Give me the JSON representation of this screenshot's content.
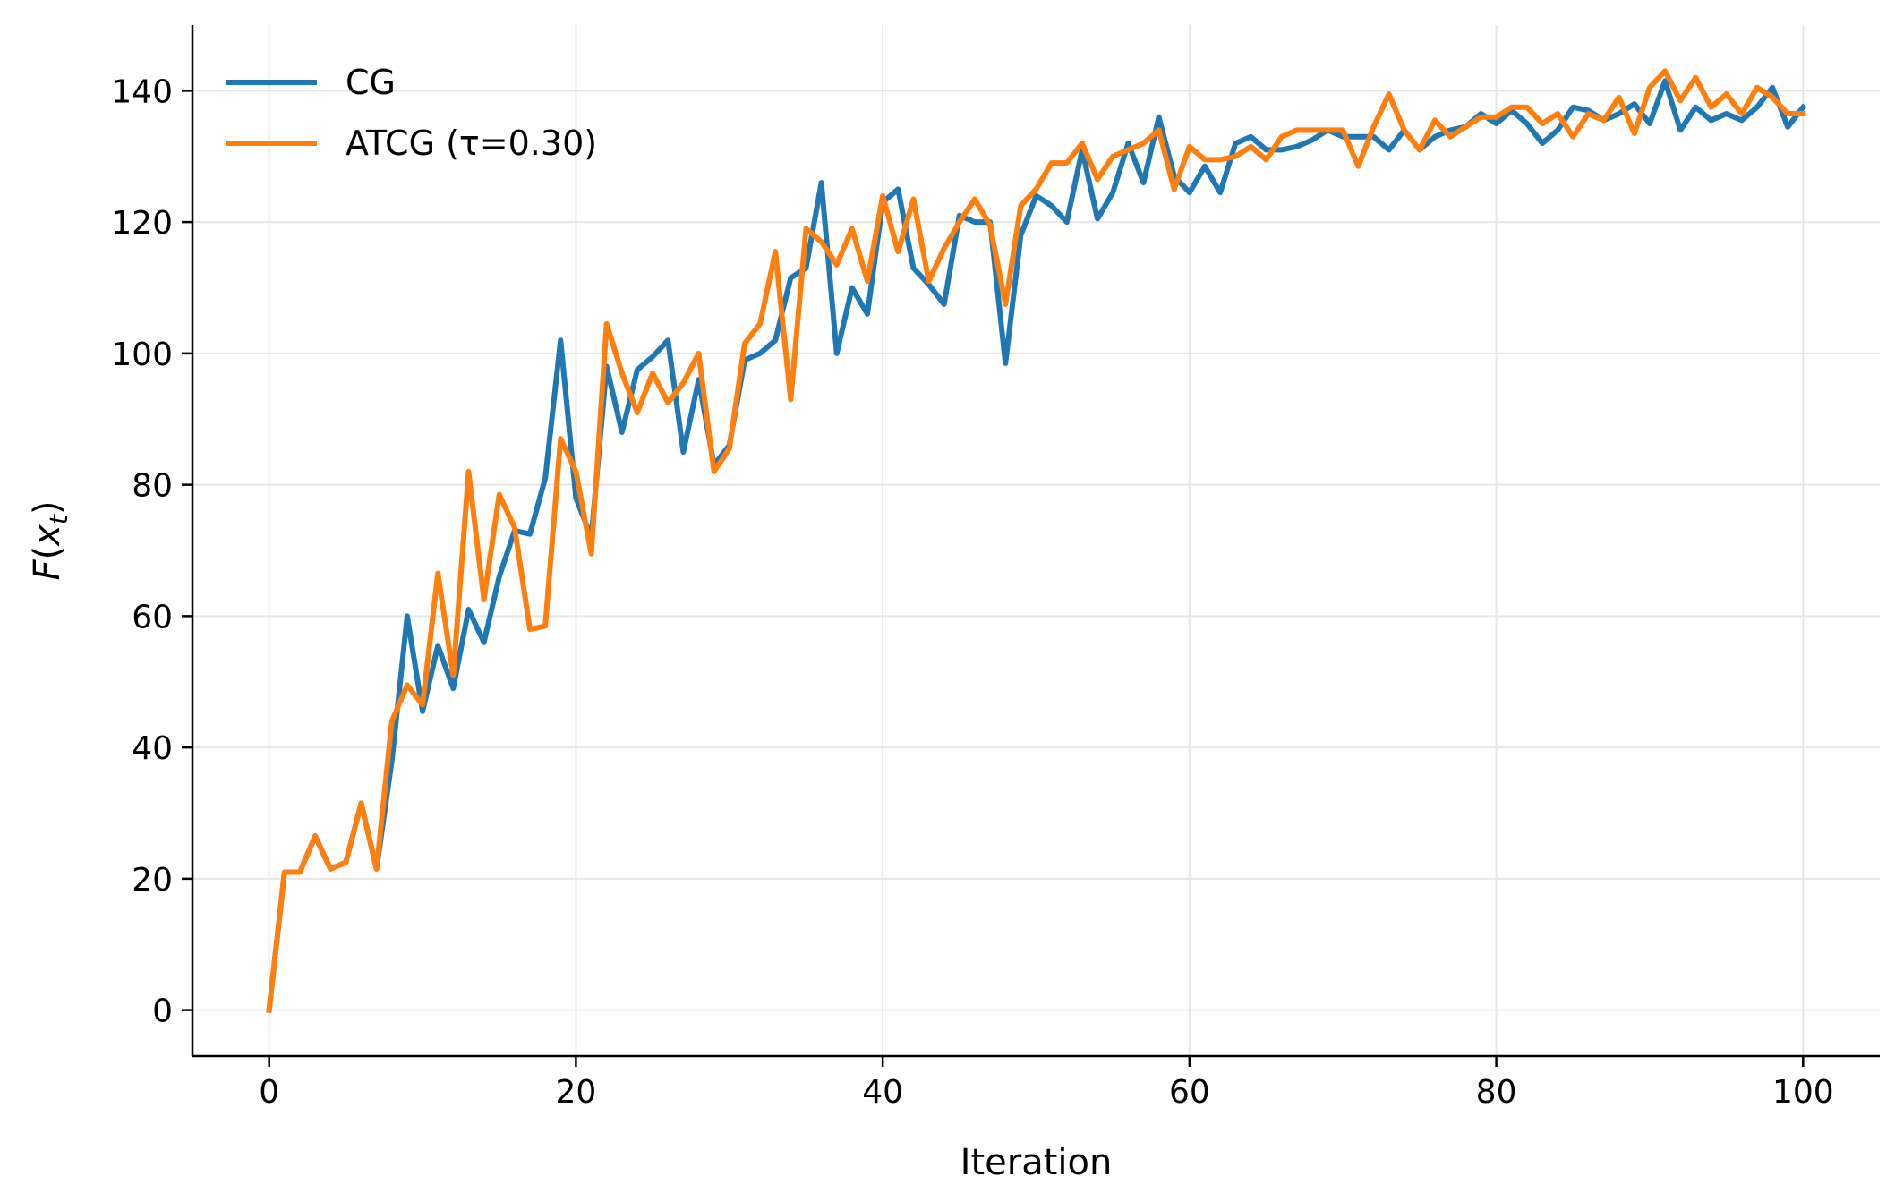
{
  "chart_data": {
    "type": "line",
    "title": "",
    "xlabel": "Iteration",
    "ylabel": "F(x_t)",
    "xlim": [
      -5,
      105
    ],
    "ylim": [
      -7,
      150
    ],
    "x_ticks": [
      0,
      20,
      40,
      60,
      80,
      100
    ],
    "y_ticks": [
      0,
      20,
      40,
      60,
      80,
      100,
      120,
      140
    ],
    "grid": true,
    "legend_position": "top-left",
    "x": [
      0,
      1,
      2,
      3,
      4,
      5,
      6,
      7,
      8,
      9,
      10,
      11,
      12,
      13,
      14,
      15,
      16,
      17,
      18,
      19,
      20,
      21,
      22,
      23,
      24,
      25,
      26,
      27,
      28,
      29,
      30,
      31,
      32,
      33,
      34,
      35,
      36,
      37,
      38,
      39,
      40,
      41,
      42,
      43,
      44,
      45,
      46,
      47,
      48,
      49,
      50,
      51,
      52,
      53,
      54,
      55,
      56,
      57,
      58,
      59,
      60,
      61,
      62,
      63,
      64,
      65,
      66,
      67,
      68,
      69,
      70,
      71,
      72,
      73,
      74,
      75,
      76,
      77,
      78,
      79,
      80,
      81,
      82,
      83,
      84,
      85,
      86,
      87,
      88,
      89,
      90,
      91,
      92,
      93,
      94,
      95,
      96,
      97,
      98,
      99,
      100
    ],
    "series": [
      {
        "name": "CG",
        "color": "#1f77b4",
        "values": [
          0,
          21,
          21,
          26.5,
          21.5,
          22.5,
          31.5,
          21.5,
          38,
          60,
          45.5,
          55.5,
          49,
          61,
          56,
          66,
          73,
          72.5,
          81,
          102,
          78,
          72,
          98,
          88,
          97.5,
          99.5,
          102,
          85,
          96,
          83,
          86,
          99,
          100,
          102,
          111.5,
          113,
          126,
          100,
          110,
          106,
          123,
          125,
          113,
          110.5,
          107.5,
          121,
          120,
          120,
          98.5,
          118,
          124,
          122.5,
          120,
          131,
          120.5,
          124.5,
          132,
          126,
          136,
          127,
          124.5,
          128.5,
          124.5,
          132,
          133,
          131,
          131,
          131.5,
          132.5,
          134,
          133,
          133,
          133,
          131,
          134,
          131,
          133,
          134,
          134.5,
          136.5,
          135,
          137,
          135,
          132,
          134,
          137.5,
          137,
          135.5,
          136.5,
          138,
          135,
          141.5,
          134,
          137.5,
          135.5,
          136.5,
          135.5,
          137.5,
          140.5,
          134.5,
          137.5
        ]
      },
      {
        "name": "ATCG (τ=0.30)",
        "color": "#ff7f0e",
        "values": [
          0,
          21,
          21,
          26.5,
          21.5,
          22.5,
          31.5,
          21.5,
          44,
          49.5,
          46.5,
          66.5,
          51,
          82,
          62.5,
          78.5,
          73.5,
          58,
          58.5,
          87,
          82,
          69.5,
          104.5,
          97,
          91,
          97,
          92.5,
          95.5,
          100,
          82,
          85.5,
          101.5,
          104.5,
          115.5,
          93,
          119,
          117,
          113.5,
          119,
          111,
          124,
          115.5,
          123.5,
          111,
          116,
          120,
          123.5,
          119.5,
          107.5,
          122.5,
          125,
          129,
          129,
          132,
          126.5,
          130,
          131,
          132,
          134,
          125,
          131.5,
          129.5,
          129.5,
          130,
          131.5,
          129.5,
          133,
          134,
          134,
          134,
          134,
          128.5,
          134.5,
          139.5,
          134,
          131,
          135.5,
          133,
          134.5,
          136,
          136,
          137.5,
          137.5,
          135,
          136.5,
          133,
          136.5,
          135.5,
          139,
          133.5,
          140.5,
          143,
          138.5,
          142,
          137.5,
          139.5,
          136.5,
          140.5,
          139,
          136.5,
          136.5
        ]
      }
    ]
  }
}
